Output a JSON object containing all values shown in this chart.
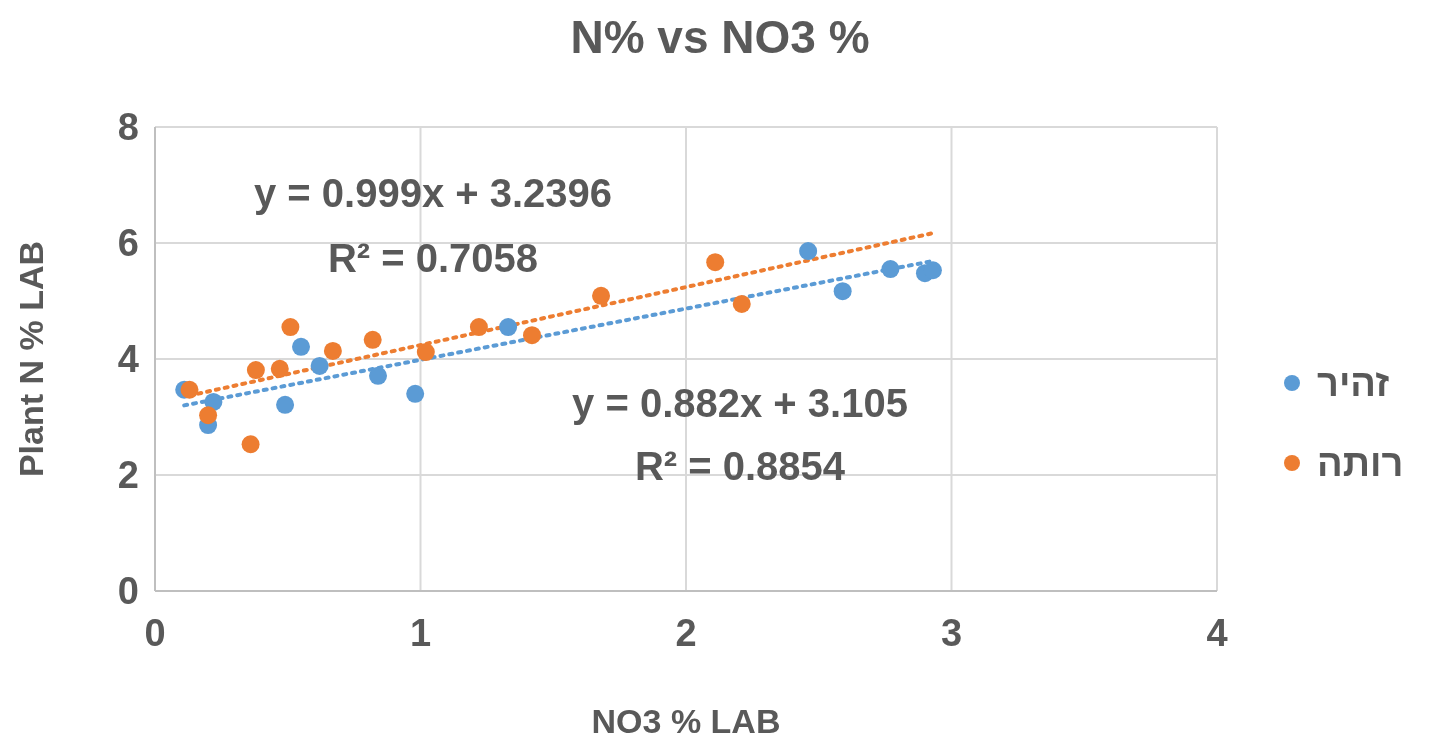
{
  "chart_data": {
    "type": "scatter",
    "title": "N% vs NO3 %",
    "xlabel": "NO3 % LAB",
    "ylabel": "Plant N % LAB",
    "xlim": [
      0,
      4
    ],
    "xticks": [
      0,
      1,
      2,
      3,
      4
    ],
    "ylim": [
      0,
      8
    ],
    "yticks": [
      0,
      2,
      4,
      6,
      8
    ],
    "grid": true,
    "legend": "right",
    "series": [
      {
        "name": "זהיר",
        "color": "#5b9bd5",
        "marker": "circle",
        "x": [
          0.11,
          0.2,
          0.22,
          0.49,
          0.55,
          0.62,
          0.84,
          0.98,
          1.33,
          2.46,
          2.59,
          2.77,
          2.9,
          2.93
        ],
        "values": [
          3.47,
          2.86,
          3.26,
          3.21,
          4.21,
          3.88,
          3.71,
          3.4,
          4.55,
          5.86,
          5.17,
          5.55,
          5.48,
          5.53
        ]
      },
      {
        "name": "רותה",
        "color": "#ed7d31",
        "marker": "circle",
        "x": [
          0.13,
          0.2,
          0.36,
          0.38,
          0.47,
          0.51,
          0.67,
          0.82,
          1.02,
          1.22,
          1.42,
          1.68,
          2.11,
          2.21
        ],
        "values": [
          3.47,
          3.03,
          2.53,
          3.81,
          3.83,
          4.55,
          4.14,
          4.33,
          4.12,
          4.55,
          4.41,
          5.09,
          5.67,
          4.95
        ]
      },
      {
        "type": "line",
        "color": "#5b9bd5",
        "line_style": "dotted",
        "marker": "none",
        "x": [
          0.11,
          2.93
        ],
        "values": [
          3.2,
          5.69
        ]
      },
      {
        "type": "line",
        "color": "#ed7d31",
        "line_style": "dotted",
        "marker": "none",
        "x": [
          0.13,
          2.93
        ],
        "values": [
          3.37,
          6.17
        ]
      }
    ],
    "annotations": [
      "y = 0.999x + 3.2396",
      "R² = 0.7058",
      "y = 0.882x + 3.105",
      "R² = 0.8854"
    ]
  }
}
